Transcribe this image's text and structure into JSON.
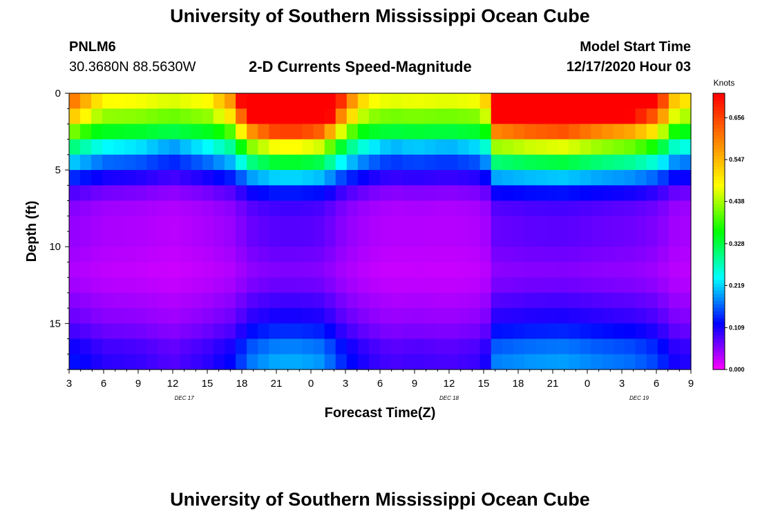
{
  "header": {
    "title": "University of Southern Mississippi Ocean Cube",
    "station_id": "PNLM6",
    "coordinates": "30.3680N 88.5630W",
    "plot_title": "2-D Currents Speed-Magnitude",
    "model_start_label": "Model Start Time",
    "model_start_value": "12/17/2020 Hour 03",
    "footer_title": "University of Southern Mississippi Ocean Cube"
  },
  "chart_data": {
    "type": "heatmap",
    "title": "2-D Currents Speed-Magnitude",
    "xlabel": "Forecast Time(Z)",
    "ylabel": "Depth (ft)",
    "colorbar_label": "Knots",
    "x_range": [
      0,
      54
    ],
    "y_range": [
      0,
      18
    ],
    "x_ticks": [
      {
        "x": 0,
        "label": "3"
      },
      {
        "x": 3,
        "label": "6"
      },
      {
        "x": 6,
        "label": "9"
      },
      {
        "x": 9,
        "label": "12"
      },
      {
        "x": 12,
        "label": "15"
      },
      {
        "x": 15,
        "label": "18"
      },
      {
        "x": 18,
        "label": "21"
      },
      {
        "x": 21,
        "label": "0"
      },
      {
        "x": 24,
        "label": "3"
      },
      {
        "x": 27,
        "label": "6"
      },
      {
        "x": 30,
        "label": "9"
      },
      {
        "x": 33,
        "label": "12"
      },
      {
        "x": 36,
        "label": "15"
      },
      {
        "x": 39,
        "label": "18"
      },
      {
        "x": 42,
        "label": "21"
      },
      {
        "x": 45,
        "label": "0"
      },
      {
        "x": 48,
        "label": "3"
      },
      {
        "x": 51,
        "label": "6"
      },
      {
        "x": 54,
        "label": "9"
      }
    ],
    "date_labels": [
      {
        "x": 10,
        "label": "DEC 17"
      },
      {
        "x": 33,
        "label": "DEC 18"
      },
      {
        "x": 49.5,
        "label": "DEC 19"
      }
    ],
    "y_ticks": [
      0,
      5,
      10,
      15
    ],
    "colorbar": {
      "min": 0.0,
      "max": 0.72,
      "ticks": [
        "0.000",
        "0.109",
        "0.219",
        "0.328",
        "0.438",
        "0.547",
        "0.656"
      ],
      "colors": [
        "#ff00ff",
        "#8000ff",
        "#0000ff",
        "#0080ff",
        "#00ffff",
        "#00ff80",
        "#00ff00",
        "#80ff00",
        "#ffff00",
        "#ffc000",
        "#ff8000",
        "#ff4000",
        "#ff0000"
      ]
    },
    "depth_profile": [
      {
        "depth": 0,
        "speed": 0.5
      },
      {
        "depth": 1,
        "speed": 0.46
      },
      {
        "depth": 2,
        "speed": 0.38
      },
      {
        "depth": 3,
        "speed": 0.28
      },
      {
        "depth": 4,
        "speed": 0.2
      },
      {
        "depth": 5,
        "speed": 0.14
      },
      {
        "depth": 6,
        "speed": 0.08
      },
      {
        "depth": 7,
        "speed": 0.05
      },
      {
        "depth": 8,
        "speed": 0.04
      },
      {
        "depth": 9,
        "speed": 0.04
      },
      {
        "depth": 10,
        "speed": 0.04
      },
      {
        "depth": 11,
        "speed": 0.03
      },
      {
        "depth": 12,
        "speed": 0.03
      },
      {
        "depth": 13,
        "speed": 0.04
      },
      {
        "depth": 14,
        "speed": 0.05
      },
      {
        "depth": 15,
        "speed": 0.06
      },
      {
        "depth": 16,
        "speed": 0.08
      },
      {
        "depth": 17,
        "speed": 0.1
      }
    ],
    "speed_scale_by_time": [
      {
        "x": 0,
        "factor": 1.6
      },
      {
        "x": 3,
        "factor": 1.0
      },
      {
        "x": 6,
        "factor": 0.9
      },
      {
        "x": 9,
        "factor": 0.6
      },
      {
        "x": 12,
        "factor": 1.0
      },
      {
        "x": 14,
        "factor": 1.4
      },
      {
        "x": 16,
        "factor": 2.6
      },
      {
        "x": 18,
        "factor": 3.0
      },
      {
        "x": 20,
        "factor": 3.0
      },
      {
        "x": 22,
        "factor": 2.8
      },
      {
        "x": 24,
        "factor": 1.6
      },
      {
        "x": 26,
        "factor": 1.0
      },
      {
        "x": 28,
        "factor": 0.7
      },
      {
        "x": 30,
        "factor": 0.8
      },
      {
        "x": 33,
        "factor": 0.7
      },
      {
        "x": 36,
        "factor": 0.9
      },
      {
        "x": 37,
        "factor": 2.6
      },
      {
        "x": 40,
        "factor": 2.8
      },
      {
        "x": 43,
        "factor": 2.9
      },
      {
        "x": 46,
        "factor": 2.6
      },
      {
        "x": 49,
        "factor": 2.4
      },
      {
        "x": 51,
        "factor": 2.0
      },
      {
        "x": 53,
        "factor": 1.0
      },
      {
        "x": 54,
        "factor": 1.2
      }
    ]
  }
}
